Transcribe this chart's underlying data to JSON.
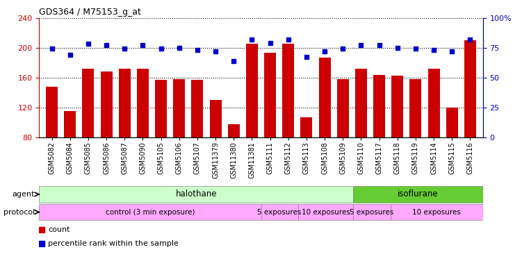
{
  "title": "GDS364 / M75153_g_at",
  "samples": [
    "GSM5082",
    "GSM5084",
    "GSM5085",
    "GSM5086",
    "GSM5087",
    "GSM5090",
    "GSM5105",
    "GSM5106",
    "GSM5107",
    "GSM11379",
    "GSM11380",
    "GSM11381",
    "GSM5111",
    "GSM5112",
    "GSM5113",
    "GSM5108",
    "GSM5109",
    "GSM5110",
    "GSM5117",
    "GSM5118",
    "GSM5119",
    "GSM5114",
    "GSM5115",
    "GSM5116"
  ],
  "counts": [
    148,
    115,
    172,
    168,
    172,
    172,
    157,
    158,
    157,
    130,
    97,
    205,
    193,
    205,
    107,
    187,
    158,
    172,
    163,
    162,
    158,
    172,
    120,
    210
  ],
  "percentiles": [
    74,
    69,
    78,
    77,
    74,
    77,
    74,
    75,
    73,
    72,
    64,
    82,
    79,
    82,
    67,
    72,
    74,
    77,
    77,
    75,
    74,
    73,
    72,
    82
  ],
  "ylim_left": [
    80,
    240
  ],
  "ylim_right": [
    0,
    100
  ],
  "yticks_left": [
    80,
    120,
    160,
    200,
    240
  ],
  "yticks_right": [
    0,
    25,
    50,
    75,
    100
  ],
  "bar_color": "#cc0000",
  "dot_color": "#0000cc",
  "halothane_color": "#ccffcc",
  "isoflurane_color": "#66cc33",
  "protocol_color": "#ffaaff",
  "background_color": "#ffffff",
  "hal_count": 17,
  "iso_count": 7,
  "control_count": 12,
  "hal_5exp_count": 2,
  "hal_10exp_count": 3,
  "iso_5exp_count": 2,
  "iso_10exp_count": 5
}
